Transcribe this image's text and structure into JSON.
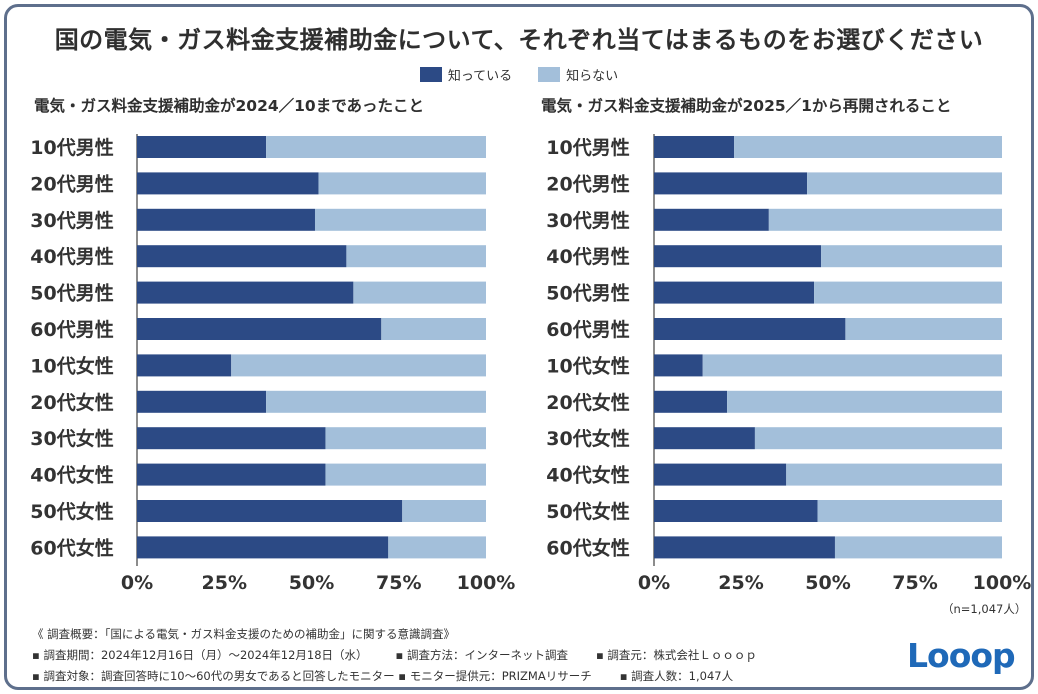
{
  "title": "国の電気・ガス料金支援補助金について、それぞれ当てはまるものをお選びください",
  "legend": {
    "known": "知っている",
    "unknown": "知らない"
  },
  "colors": {
    "known": "#2c4a85",
    "unknown": "#a3bfda",
    "frame": "#5e6f8c",
    "text": "#333333"
  },
  "chart_data": [
    {
      "type": "bar",
      "orientation": "horizontal",
      "stacked": true,
      "title": "電気・ガス料金支援補助金が2024／10まであったこと",
      "categories": [
        "10代男性",
        "20代男性",
        "30代男性",
        "40代男性",
        "50代男性",
        "60代男性",
        "10代女性",
        "20代女性",
        "30代女性",
        "40代女性",
        "50代女性",
        "60代女性"
      ],
      "series": [
        {
          "name": "知っている",
          "values": [
            37,
            52,
            51,
            60,
            62,
            70,
            27,
            37,
            54,
            54,
            76,
            72
          ]
        },
        {
          "name": "知らない",
          "values": [
            63,
            48,
            49,
            40,
            38,
            30,
            73,
            63,
            46,
            46,
            24,
            28
          ]
        }
      ],
      "xlim": [
        0,
        100
      ],
      "xticks": [
        "0%",
        "25%",
        "50%",
        "75%",
        "100%"
      ]
    },
    {
      "type": "bar",
      "orientation": "horizontal",
      "stacked": true,
      "title": "電気・ガス料金支援補助金が2025／1から再開されること",
      "categories": [
        "10代男性",
        "20代男性",
        "30代男性",
        "40代男性",
        "50代男性",
        "60代男性",
        "10代女性",
        "20代女性",
        "30代女性",
        "40代女性",
        "50代女性",
        "60代女性"
      ],
      "series": [
        {
          "name": "知っている",
          "values": [
            23,
            44,
            33,
            48,
            46,
            55,
            14,
            21,
            29,
            38,
            47,
            52
          ]
        },
        {
          "name": "知らない",
          "values": [
            77,
            56,
            67,
            52,
            54,
            45,
            86,
            79,
            71,
            62,
            53,
            48
          ]
        }
      ],
      "xlim": [
        0,
        100
      ],
      "xticks": [
        "0%",
        "25%",
        "50%",
        "75%",
        "100%"
      ]
    }
  ],
  "sample_size": "（n=1,047人）",
  "notes": {
    "overview": "《 調査概要：「国による電気・ガス料金支援のための補助金」に関する意識調査》",
    "period": "▪ 調査期間：2024年12月16日（月）〜2024年12月18日（水）",
    "method": "▪ 調査方法：インターネット調査",
    "source": "▪ 調査元：株式会社Ｌｏｏｏｐ",
    "target": "▪ 調査対象：調査回答時に10〜60代の男女であると回答したモニター",
    "provider": "▪ モニター提供元：PRIZMAリサーチ",
    "count": "▪ 調査人数：1,047人"
  },
  "logo": "Looop"
}
